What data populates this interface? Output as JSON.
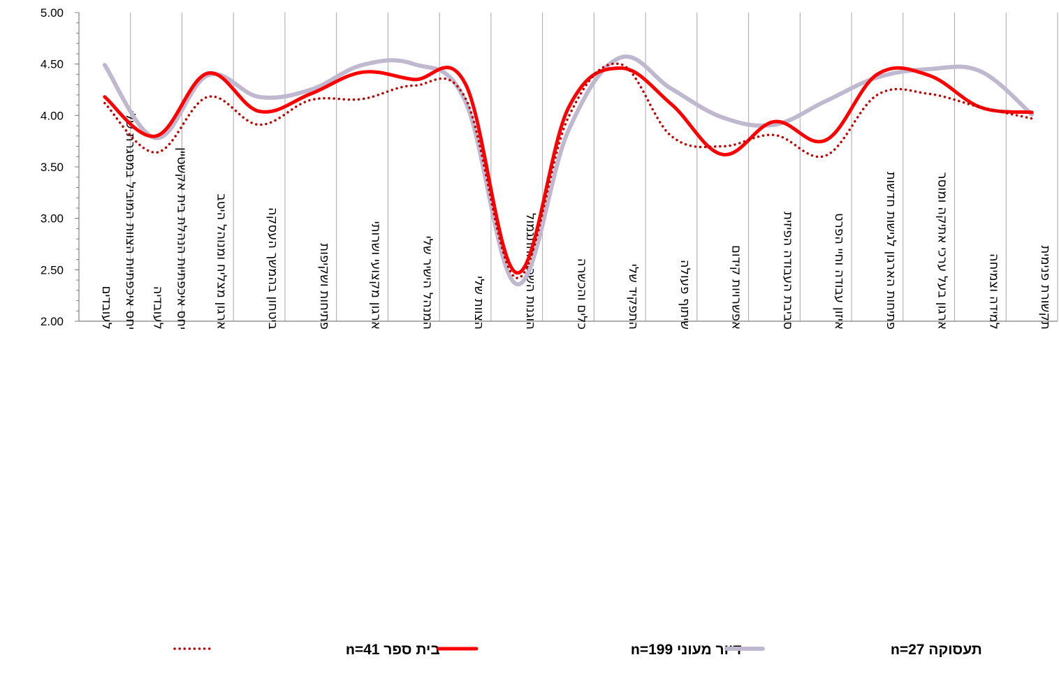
{
  "chart_data": {
    "type": "line",
    "title": "",
    "xlabel": "",
    "ylabel": "",
    "ylim": [
      2.0,
      5.0
    ],
    "yticks": [
      "5.00",
      "4.50",
      "4.00",
      "3.50",
      "3.00",
      "2.50",
      "2.00"
    ],
    "grid": "vertical",
    "legend_position": "bottom",
    "categories": [
      [
        "יחס איכפתיות הצוות המוביל במסגרת שלי",
        "לעובדים"
      ],
      [
        "יחס איכפתיות הנהלת בית אקשטיין",
        "לעובדיה"
      ],
      [
        "ארגון מצליח ומנוהל היטב"
      ],
      [
        "ביטחון בהמשך העסקה"
      ],
      [
        "פתיחות ושקיפות"
      ],
      [
        "ארגון מקצועי ושרותי"
      ],
      [
        "המנהל הישיר שלי"
      ],
      [
        "הצוות שלי"
      ],
      [
        "הוגנות השכר והתגמול"
      ],
      [
        "כלים והכשרה"
      ],
      [
        "התפקיד שלי"
      ],
      [
        "שיתוף פעולה"
      ],
      [
        "אפשרויות קידום"
      ],
      [
        "סביבת העבודה הפיזית"
      ],
      [
        "איזון עבודה וחיי הפרט"
      ],
      [
        "פתיחות הארגון לגישות חדשות"
      ],
      [
        "ארגון בעל ערכי אתיקה ומוסר"
      ],
      [
        "למידה וצמיחה"
      ],
      [
        "תקשורת פנימית"
      ]
    ],
    "series": [
      {
        "name": "בית ספר n=41",
        "color": "#C00000",
        "style": "dotted",
        "values": [
          4.12,
          3.64,
          4.18,
          3.91,
          4.15,
          4.16,
          4.29,
          4.17,
          2.42,
          3.98,
          4.5,
          3.8,
          3.7,
          3.81,
          3.61,
          4.2,
          4.21,
          4.08,
          3.97
        ]
      },
      {
        "name": "דיור מעוני n=199",
        "color": "#FF0000",
        "style": "solid",
        "values": [
          4.18,
          3.8,
          4.41,
          4.04,
          4.21,
          4.42,
          4.35,
          4.31,
          2.47,
          4.07,
          4.46,
          4.11,
          3.62,
          3.94,
          3.76,
          4.4,
          4.39,
          4.08,
          4.03
        ]
      },
      {
        "name": "תעסוקה n=27",
        "color": "#BFB8CF",
        "style": "solid",
        "values": [
          4.49,
          3.78,
          4.39,
          4.18,
          4.25,
          4.49,
          4.5,
          4.14,
          2.36,
          3.85,
          4.56,
          4.26,
          3.98,
          3.91,
          4.14,
          4.37,
          4.45,
          4.43,
          4.01
        ]
      }
    ]
  }
}
